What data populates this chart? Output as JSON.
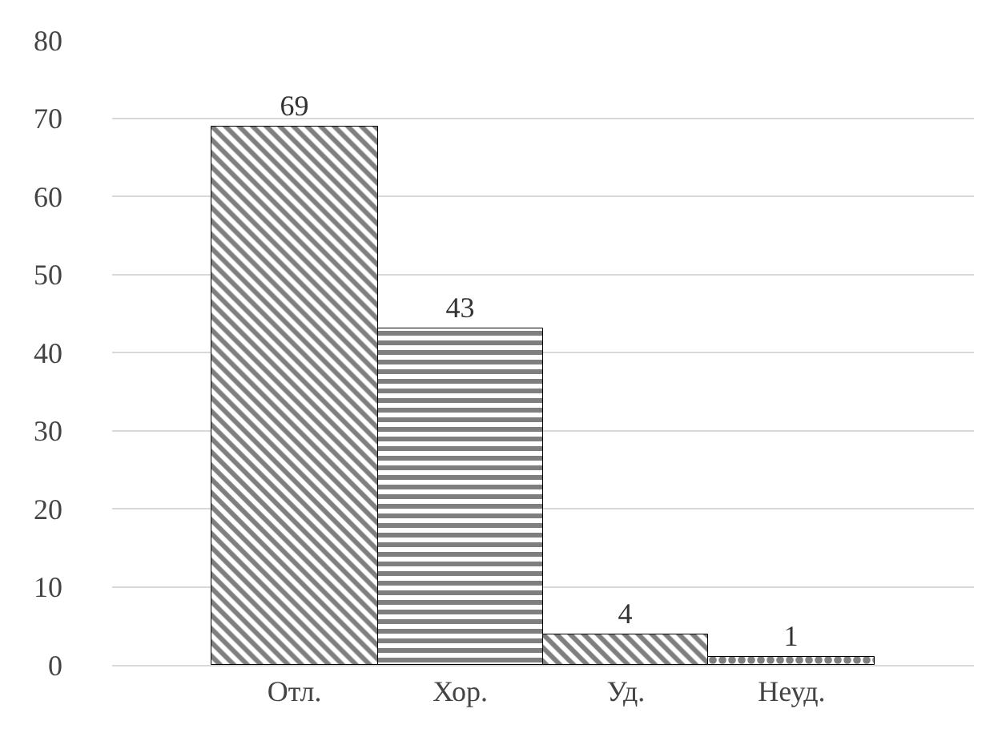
{
  "chart_data": {
    "type": "bar",
    "categories": [
      "Отл.",
      "Хор.",
      "Уд.",
      "Неуд."
    ],
    "values": [
      69,
      43,
      4,
      1
    ],
    "color": "#000000",
    "ylim": [
      0,
      80
    ],
    "yticks": [
      0,
      10,
      20,
      30,
      40,
      50,
      60,
      70,
      80
    ],
    "grid": "y",
    "data_labels": true
  }
}
